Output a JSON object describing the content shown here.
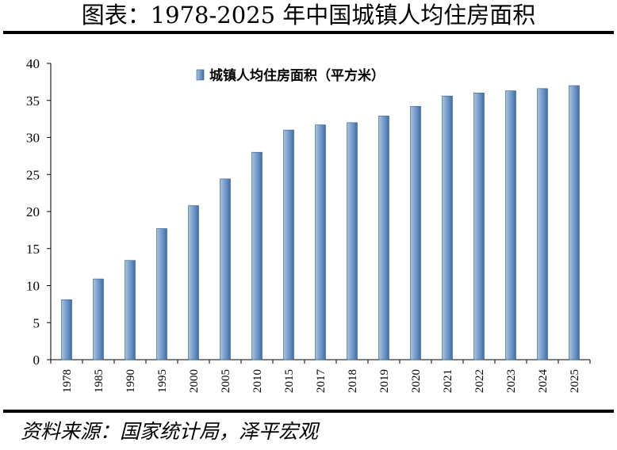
{
  "page": {
    "title": "图表：1978-2025 年中国城镇人均住房面积",
    "source": "资料来源：国家统计局，泽平宏观"
  },
  "colors": {
    "bar_fill_light": "#a9c3df",
    "bar_fill_dark": "#3e6fa6",
    "bar_stroke": "#2f5c8f",
    "axis": "#000000"
  },
  "chart_data": {
    "type": "bar",
    "categories": [
      "1978",
      "1985",
      "1990",
      "1995",
      "2000",
      "2005",
      "2010",
      "2015",
      "2017",
      "2018",
      "2019",
      "2020",
      "2021",
      "2022",
      "2023",
      "2024",
      "2025"
    ],
    "series": [
      {
        "name": "城镇人均住房面积（平方米）",
        "values": [
          8.1,
          10.9,
          13.4,
          17.7,
          20.8,
          24.4,
          28.0,
          31.0,
          31.7,
          32.0,
          32.9,
          34.2,
          35.6,
          36.0,
          36.3,
          36.6,
          37.0
        ]
      }
    ],
    "ylim": [
      0,
      40
    ],
    "yticks": [
      "0",
      "5",
      "10",
      "15",
      "20",
      "25",
      "30",
      "35",
      "40"
    ],
    "grid": false,
    "legend": "top-center"
  }
}
